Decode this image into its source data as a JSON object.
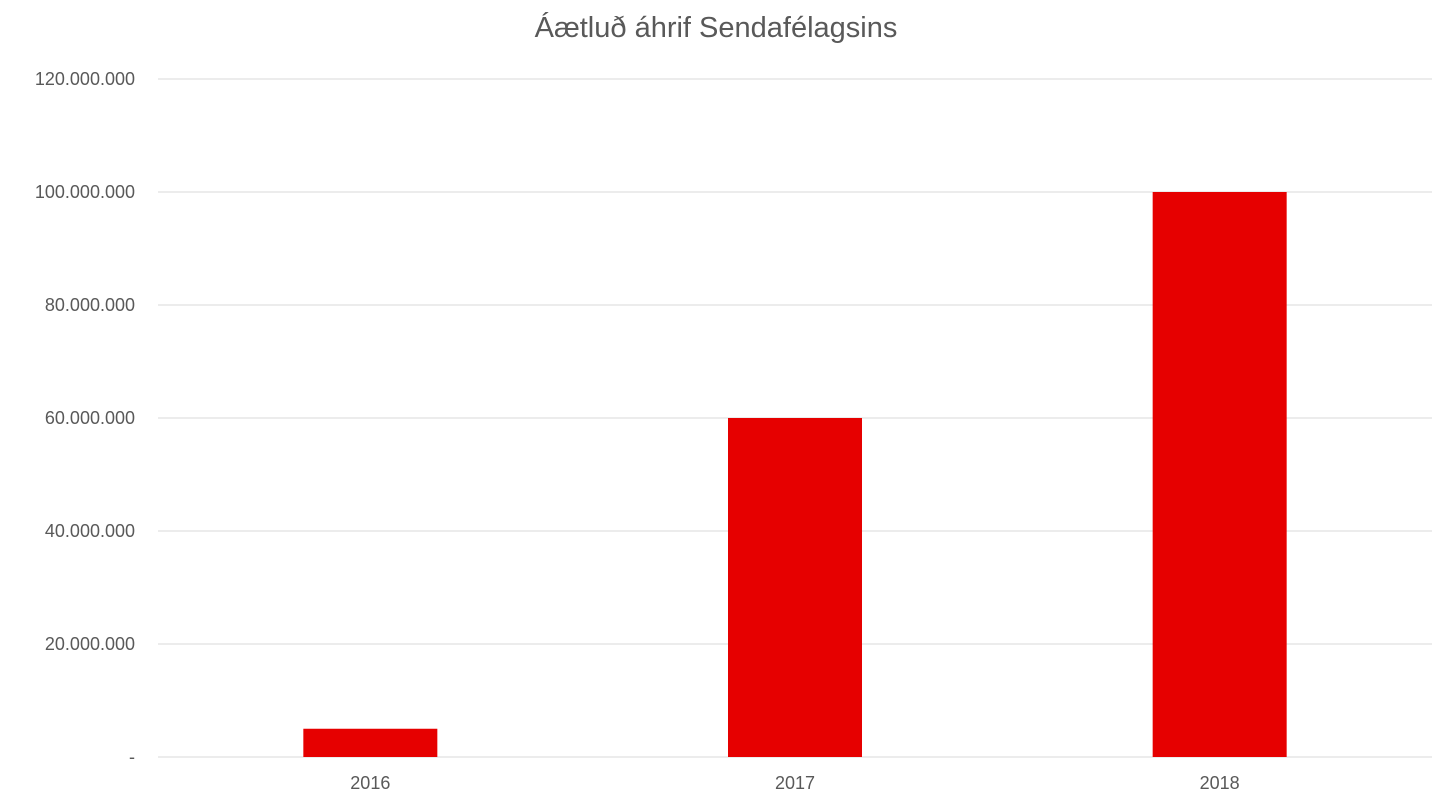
{
  "chart_data": {
    "type": "bar",
    "title": "Áætluð áhrif Sendafélagsins",
    "categories": [
      "2016",
      "2017",
      "2018"
    ],
    "values": [
      5000000,
      60000000,
      100000000
    ],
    "ylim": [
      0,
      120000000
    ],
    "yticks": [
      0,
      20000000,
      40000000,
      60000000,
      80000000,
      100000000,
      120000000
    ],
    "ytick_labels": [
      "-",
      "20.000.000",
      "40.000.000",
      "60.000.000",
      "80.000.000",
      "100.000.000",
      "120.000.000"
    ],
    "grid": true,
    "legend": "none",
    "bar_color": "#e60000"
  }
}
